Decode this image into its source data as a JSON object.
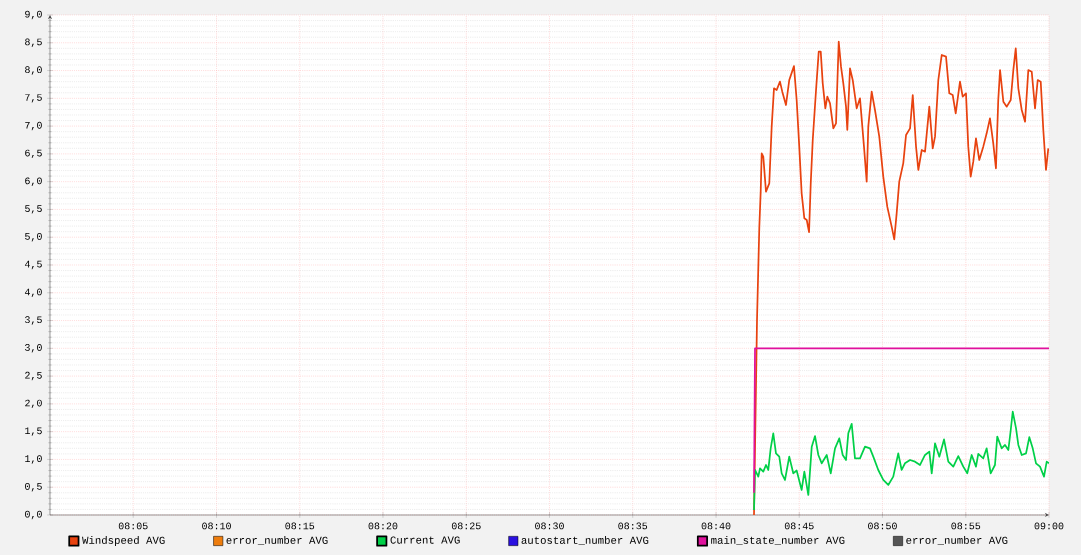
{
  "chart_data": {
    "type": "line",
    "xlim": [
      8.0,
      9.0
    ],
    "ylim": [
      0,
      9
    ],
    "xticks": [
      {
        "value": 8.0833,
        "label": "08:05"
      },
      {
        "value": 8.1667,
        "label": "08:10"
      },
      {
        "value": 8.25,
        "label": "08:15"
      },
      {
        "value": 8.3333,
        "label": "08:20"
      },
      {
        "value": 8.4167,
        "label": "08:25"
      },
      {
        "value": 8.5,
        "label": "08:30"
      },
      {
        "value": 8.5833,
        "label": "08:35"
      },
      {
        "value": 8.6667,
        "label": "08:40"
      },
      {
        "value": 8.75,
        "label": "08:45"
      },
      {
        "value": 8.8333,
        "label": "08:50"
      },
      {
        "value": 8.9167,
        "label": "08:55"
      },
      {
        "value": 9.0,
        "label": "09:00"
      }
    ],
    "yticks": [
      {
        "value": 0,
        "label": "0,0"
      },
      {
        "value": 0.5,
        "label": "0,5"
      },
      {
        "value": 1,
        "label": "1,0"
      },
      {
        "value": 1.5,
        "label": "1,5"
      },
      {
        "value": 2,
        "label": "2,0"
      },
      {
        "value": 2.5,
        "label": "2,5"
      },
      {
        "value": 3,
        "label": "3,0"
      },
      {
        "value": 3.5,
        "label": "3,5"
      },
      {
        "value": 4,
        "label": "4,0"
      },
      {
        "value": 4.5,
        "label": "4,5"
      },
      {
        "value": 5,
        "label": "5,0"
      },
      {
        "value": 5.5,
        "label": "5,5"
      },
      {
        "value": 6,
        "label": "6,0"
      },
      {
        "value": 6.5,
        "label": "6,5"
      },
      {
        "value": 7,
        "label": "7,0"
      },
      {
        "value": 7.5,
        "label": "7,5"
      },
      {
        "value": 8,
        "label": "8,0"
      },
      {
        "value": 8.5,
        "label": "8,5"
      },
      {
        "value": 9,
        "label": "9,0"
      }
    ],
    "grid": true,
    "legend": "bottom",
    "marker": "none",
    "line_style": "solid",
    "series": [
      {
        "name": "Windspeed AVG",
        "color": "#e8420f",
        "x": [
          8.7047,
          8.7077,
          8.71,
          8.7114,
          8.7124,
          8.714,
          8.7167,
          8.72,
          8.7224,
          8.7247,
          8.7274,
          8.7307,
          8.733,
          8.7367,
          8.74,
          8.7447,
          8.7474,
          8.75,
          8.7524,
          8.7551,
          8.7575,
          8.7598,
          8.7615,
          8.7635,
          8.7668,
          8.7695,
          8.7715,
          8.7735,
          8.7761,
          8.7781,
          8.7808,
          8.7841,
          8.7868,
          8.7895,
          8.7918,
          8.7941,
          8.7968,
          8.7981,
          8.8008,
          8.8035,
          8.8075,
          8.8108,
          8.8148,
          8.8175,
          8.8191,
          8.8225,
          8.8258,
          8.8301,
          8.8341,
          8.8381,
          8.8425,
          8.8451,
          8.8475,
          8.8501,
          8.8541,
          8.8569,
          8.8609,
          8.8636,
          8.8669,
          8.8692,
          8.8726,
          8.8759,
          8.8802,
          8.8836,
          8.8859,
          8.8892,
          8.8926,
          8.8969,
          8.9002,
          8.9036,
          8.9066,
          8.9109,
          8.9136,
          8.9169,
          8.9192,
          8.9216,
          8.9242,
          8.9269,
          8.9302,
          8.9342,
          8.9376,
          8.9409,
          8.9442,
          8.9469,
          8.9492,
          8.951,
          8.9543,
          8.9577,
          8.9617,
          8.9643,
          8.9667,
          8.9693,
          8.9727,
          8.976,
          8.9793,
          8.9827,
          8.986,
          8.9887,
          8.9917,
          8.9943,
          8.997,
          8.9993
        ],
        "values": [
          0.0,
          3.5,
          5.17,
          5.82,
          6.51,
          6.45,
          5.82,
          5.97,
          6.99,
          7.68,
          7.65,
          7.8,
          7.62,
          7.38,
          7.83,
          8.08,
          7.47,
          6.63,
          5.79,
          5.34,
          5.31,
          5.09,
          5.97,
          6.75,
          7.65,
          8.34,
          8.34,
          7.77,
          7.32,
          7.53,
          7.41,
          6.96,
          7.05,
          8.52,
          8.07,
          7.77,
          7.35,
          6.93,
          8.04,
          7.83,
          7.32,
          7.5,
          6.63,
          6.0,
          6.99,
          7.62,
          7.29,
          6.81,
          6.09,
          5.55,
          5.19,
          4.96,
          5.43,
          6.0,
          6.33,
          6.84,
          6.96,
          7.56,
          6.63,
          6.21,
          6.57,
          6.54,
          7.35,
          6.6,
          6.81,
          7.83,
          8.28,
          8.25,
          7.59,
          7.56,
          7.23,
          7.8,
          7.53,
          7.59,
          6.63,
          6.09,
          6.36,
          6.78,
          6.39,
          6.63,
          6.87,
          7.14,
          6.69,
          6.24,
          7.47,
          8.01,
          7.44,
          7.35,
          7.47,
          8.01,
          8.4,
          7.68,
          7.29,
          7.08,
          8.01,
          7.98,
          7.32,
          7.83,
          7.8,
          6.93,
          6.21,
          6.6
        ]
      },
      {
        "name": "error_number AVG",
        "color": "#ee7d0d"
      },
      {
        "name": "Current AVG",
        "color": "#00d048",
        "x": [
          8.7047,
          8.7057,
          8.709,
          8.7107,
          8.714,
          8.7167,
          8.719,
          8.7214,
          8.724,
          8.7267,
          8.73,
          8.7324,
          8.7357,
          8.74,
          8.744,
          8.7474,
          8.7524,
          8.7551,
          8.7591,
          8.7625,
          8.7658,
          8.7691,
          8.7725,
          8.7775,
          8.7815,
          8.7858,
          8.7901,
          8.7935,
          8.7968,
          8.7991,
          8.8025,
          8.8058,
          8.8108,
          8.8158,
          8.8208,
          8.8241,
          8.8291,
          8.8341,
          8.8391,
          8.8441,
          8.8491,
          8.8525,
          8.8558,
          8.8609,
          8.8659,
          8.8709,
          8.8759,
          8.8802,
          8.8826,
          8.8859,
          8.8902,
          8.8949,
          8.8992,
          8.9042,
          8.9092,
          8.9142,
          8.9182,
          8.9226,
          8.9269,
          8.9292,
          8.9342,
          8.9376,
          8.9416,
          8.9459,
          8.9482,
          8.9526,
          8.956,
          8.9593,
          8.9617,
          8.9637,
          8.967,
          8.9693,
          8.9727,
          8.977,
          8.9803,
          8.9837,
          8.987,
          8.991,
          8.995,
          8.9977,
          9.0
        ],
        "values": [
          0.09,
          0.81,
          0.69,
          0.84,
          0.78,
          0.9,
          0.81,
          1.2,
          1.47,
          1.11,
          1.05,
          0.75,
          0.63,
          1.05,
          0.75,
          0.8,
          0.45,
          0.78,
          0.36,
          1.23,
          1.42,
          1.08,
          0.93,
          1.08,
          0.75,
          1.2,
          1.38,
          1.08,
          0.99,
          1.47,
          1.64,
          1.02,
          1.02,
          1.23,
          1.2,
          1.05,
          0.81,
          0.63,
          0.54,
          0.69,
          1.11,
          0.81,
          0.93,
          0.99,
          0.96,
          0.9,
          1.08,
          1.14,
          0.75,
          1.29,
          1.05,
          1.36,
          0.96,
          0.87,
          1.06,
          0.87,
          0.75,
          1.08,
          0.87,
          1.1,
          1.02,
          1.2,
          0.75,
          0.9,
          1.41,
          1.2,
          1.26,
          1.17,
          1.53,
          1.86,
          1.56,
          1.26,
          1.08,
          1.11,
          1.4,
          1.2,
          0.93,
          0.87,
          0.69,
          0.96,
          0.93
        ]
      },
      {
        "name": "autostart_number AVG",
        "color": "#2a10e0"
      },
      {
        "name": "main_state_number AVG",
        "color": "#e0119d",
        "x": [
          8.7047,
          8.7057,
          9.0
        ],
        "values": [
          0.4,
          3.0,
          3.0
        ]
      },
      {
        "name": "error_number AVG",
        "color": "#555555"
      }
    ]
  }
}
